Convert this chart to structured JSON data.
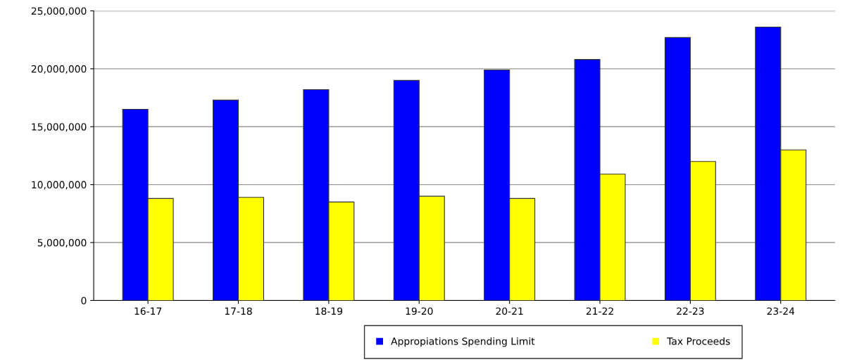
{
  "chart_data": {
    "type": "bar",
    "categories": [
      "16-17",
      "17-18",
      "18-19",
      "19-20",
      "20-21",
      "21-22",
      "22-23",
      "23-24"
    ],
    "series": [
      {
        "name": "Appropiations Spending Limit",
        "color": "#0000ff",
        "values": [
          16500000,
          17300000,
          18200000,
          19000000,
          19900000,
          20800000,
          22700000,
          23600000
        ]
      },
      {
        "name": "Tax Proceeds",
        "color": "#ffff00",
        "values": [
          8800000,
          8900000,
          8500000,
          9000000,
          8800000,
          10900000,
          12000000,
          13000000
        ]
      }
    ],
    "ylim": [
      0,
      25000000
    ],
    "yticks": [
      {
        "value": 0,
        "label": "0"
      },
      {
        "value": 5000000,
        "label": "5,000,000"
      },
      {
        "value": 10000000,
        "label": "10,000,000"
      },
      {
        "value": 15000000,
        "label": "15,000,000"
      },
      {
        "value": 20000000,
        "label": "20,000,000"
      },
      {
        "value": 25000000,
        "label": "25,000,000"
      }
    ],
    "grid": "y",
    "legend": "bottom"
  }
}
